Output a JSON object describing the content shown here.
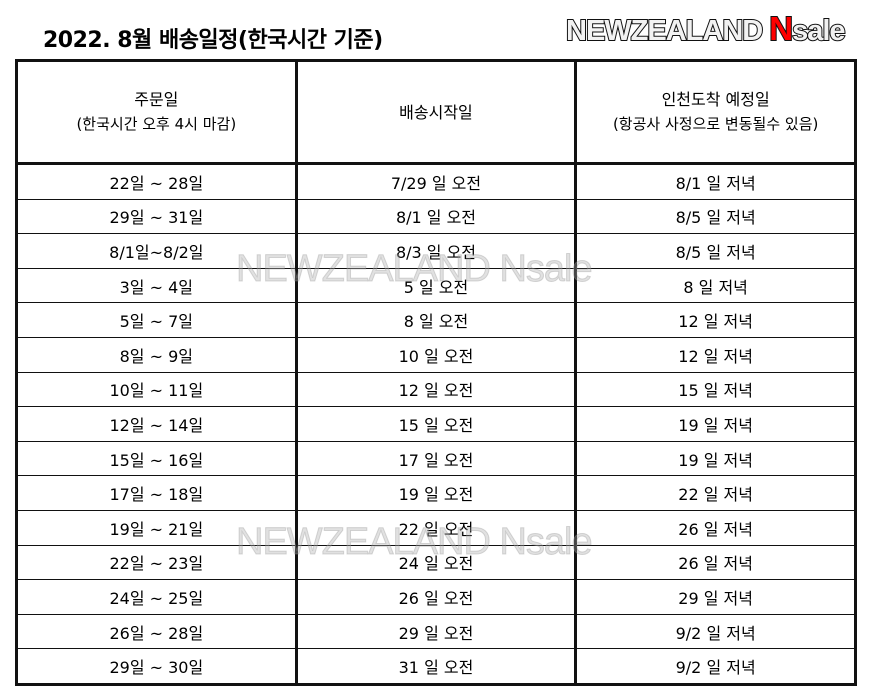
{
  "title": "2022. 8월 배송일정(한국시간 기준)",
  "logo": {
    "part1": "NEWZEALAND",
    "part2": "N",
    "part3": "sale",
    "accent": "#ff0000"
  },
  "watermark": "NEWZEALAND Nsale",
  "table": {
    "headers": [
      {
        "main": "주문일",
        "sub": "(한국시간 오후 4시 마감)"
      },
      {
        "main": "배송시작일",
        "sub": ""
      },
      {
        "main": "인천도착 예정일",
        "sub": "(항공사 사정으로 변동될수 있음)"
      }
    ],
    "rows": [
      [
        "22일 ~ 28일",
        "7/29 일 오전",
        "8/1 일 저녁"
      ],
      [
        "29일 ~ 31일",
        "8/1 일 오전",
        "8/5 일 저녁"
      ],
      [
        "8/1일~8/2일",
        "8/3 일 오전",
        "8/5 일 저녁"
      ],
      [
        "3일 ~ 4일",
        "5 일 오전",
        "8 일 저녁"
      ],
      [
        "5일 ~ 7일",
        "8 일 오전",
        "12 일 저녁"
      ],
      [
        "8일 ~ 9일",
        "10 일 오전",
        "12 일 저녁"
      ],
      [
        "10일 ~ 11일",
        "12 일 오전",
        "15 일 저녁"
      ],
      [
        "12일 ~ 14일",
        "15 일 오전",
        "19 일 저녁"
      ],
      [
        "15일 ~ 16일",
        "17 일 오전",
        "19 일 저녁"
      ],
      [
        "17일 ~ 18일",
        "19 일 오전",
        "22 일 저녁"
      ],
      [
        "19일 ~ 21일",
        "22 일 오전",
        "26 일 저녁"
      ],
      [
        "22일 ~ 23일",
        "24 일 오전",
        "26 일 저녁"
      ],
      [
        "24일 ~ 25일",
        "26 일 오전",
        "29 일 저녁"
      ],
      [
        "26일 ~ 28일",
        "29 일 오전",
        "9/2 일 저녁"
      ],
      [
        "29일 ~ 30일",
        "31 일 오전",
        "9/2 일 저녁"
      ]
    ]
  }
}
